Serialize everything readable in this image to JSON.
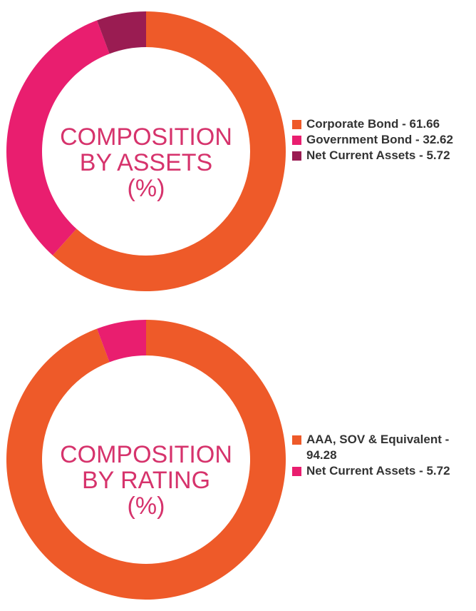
{
  "chart_data": [
    {
      "type": "pie",
      "title_lines": [
        "COMPOSITION",
        "BY ASSETS",
        "(%)"
      ],
      "categories": [
        "Corporate Bond",
        "Government Bond",
        "Net Current Assets"
      ],
      "values": [
        61.66,
        32.62,
        5.72
      ],
      "colors": [
        "#ee5a29",
        "#e91e6f",
        "#9a1c52"
      ],
      "legend_labels": [
        "Corporate Bond - 61.66",
        "Government Bond - 32.62",
        "Net Current Assets - 5.72"
      ],
      "legend_position": "right"
    },
    {
      "type": "pie",
      "title_lines": [
        "COMPOSITION",
        "BY RATING",
        "(%)"
      ],
      "categories": [
        "AAA, SOV & Equivalent",
        "Net Current Assets"
      ],
      "values": [
        94.28,
        5.72
      ],
      "colors": [
        "#ee5a29",
        "#e91e6f"
      ],
      "legend_labels": [
        "AAA, SOV & Equivalent - 94.28",
        "Net Current Assets - 5.72"
      ],
      "legend_position": "right"
    }
  ]
}
